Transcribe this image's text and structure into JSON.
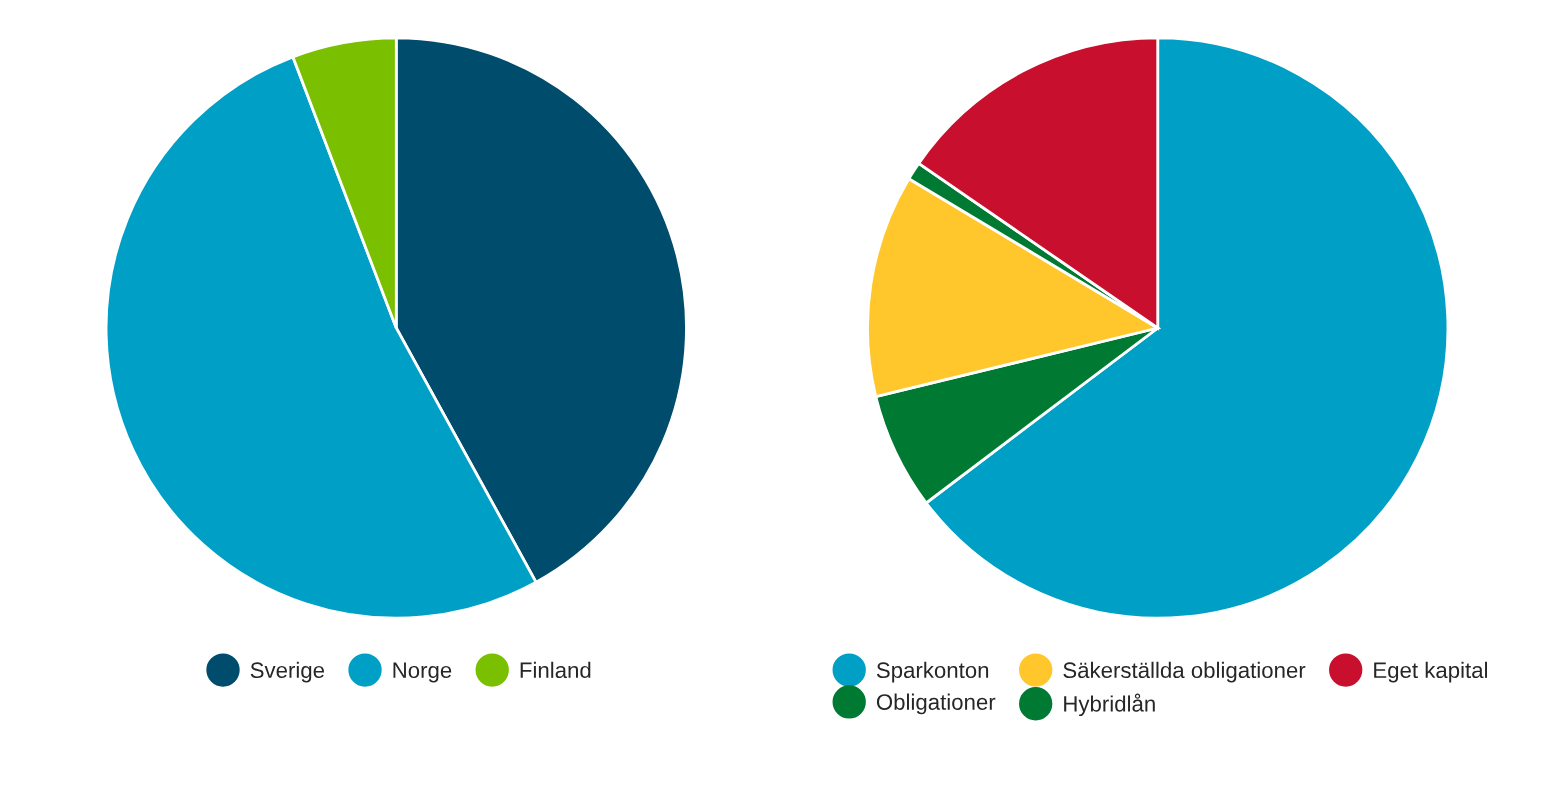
{
  "chart_data": [
    {
      "type": "pie",
      "categories": [
        "Sverige",
        "Norge",
        "Finland"
      ],
      "values": [
        42,
        52.2,
        5.8
      ],
      "colors": [
        "#004c6d",
        "#00a0c6",
        "#7ac000"
      ],
      "legend": "bottom"
    },
    {
      "type": "pie",
      "categories": [
        "Sparkonton",
        "Obligationer",
        "Säkerställda obligationer",
        "Hybridlån",
        "Eget kapital"
      ],
      "values": [
        64.7,
        6.5,
        12.4,
        1,
        15.4
      ],
      "colors": [
        "#00a0c6",
        "#007a33",
        "#ffc72c",
        "#007a33",
        "#c8102e"
      ],
      "legend": "bottom"
    }
  ]
}
